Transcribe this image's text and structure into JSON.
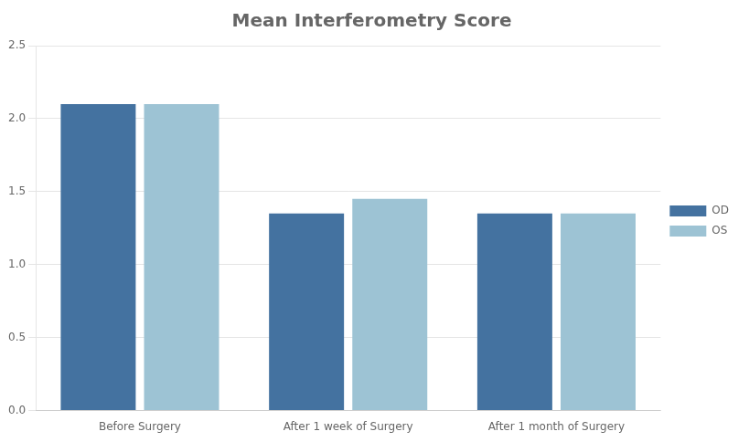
{
  "chart_data": {
    "type": "bar",
    "title": "Mean Interferometry Score",
    "categories": [
      "Before Surgery",
      "After 1 week of Surgery",
      "After 1 month of Surgery"
    ],
    "series": [
      {
        "name": "OD",
        "color": "#4472A0",
        "values": [
          2.1,
          1.35,
          1.35
        ]
      },
      {
        "name": "OS",
        "color": "#9DC3D4",
        "values": [
          2.1,
          1.45,
          1.35
        ]
      }
    ],
    "ylim": [
      0,
      2.5
    ],
    "yticks": [
      {
        "value": 0,
        "label": "0.0"
      },
      0.5,
      {
        "value": 1.0,
        "label": "1.0"
      },
      1.5,
      {
        "value": 2.0,
        "label": "2.0"
      },
      2.5
    ],
    "grid": true,
    "legend": "right"
  }
}
